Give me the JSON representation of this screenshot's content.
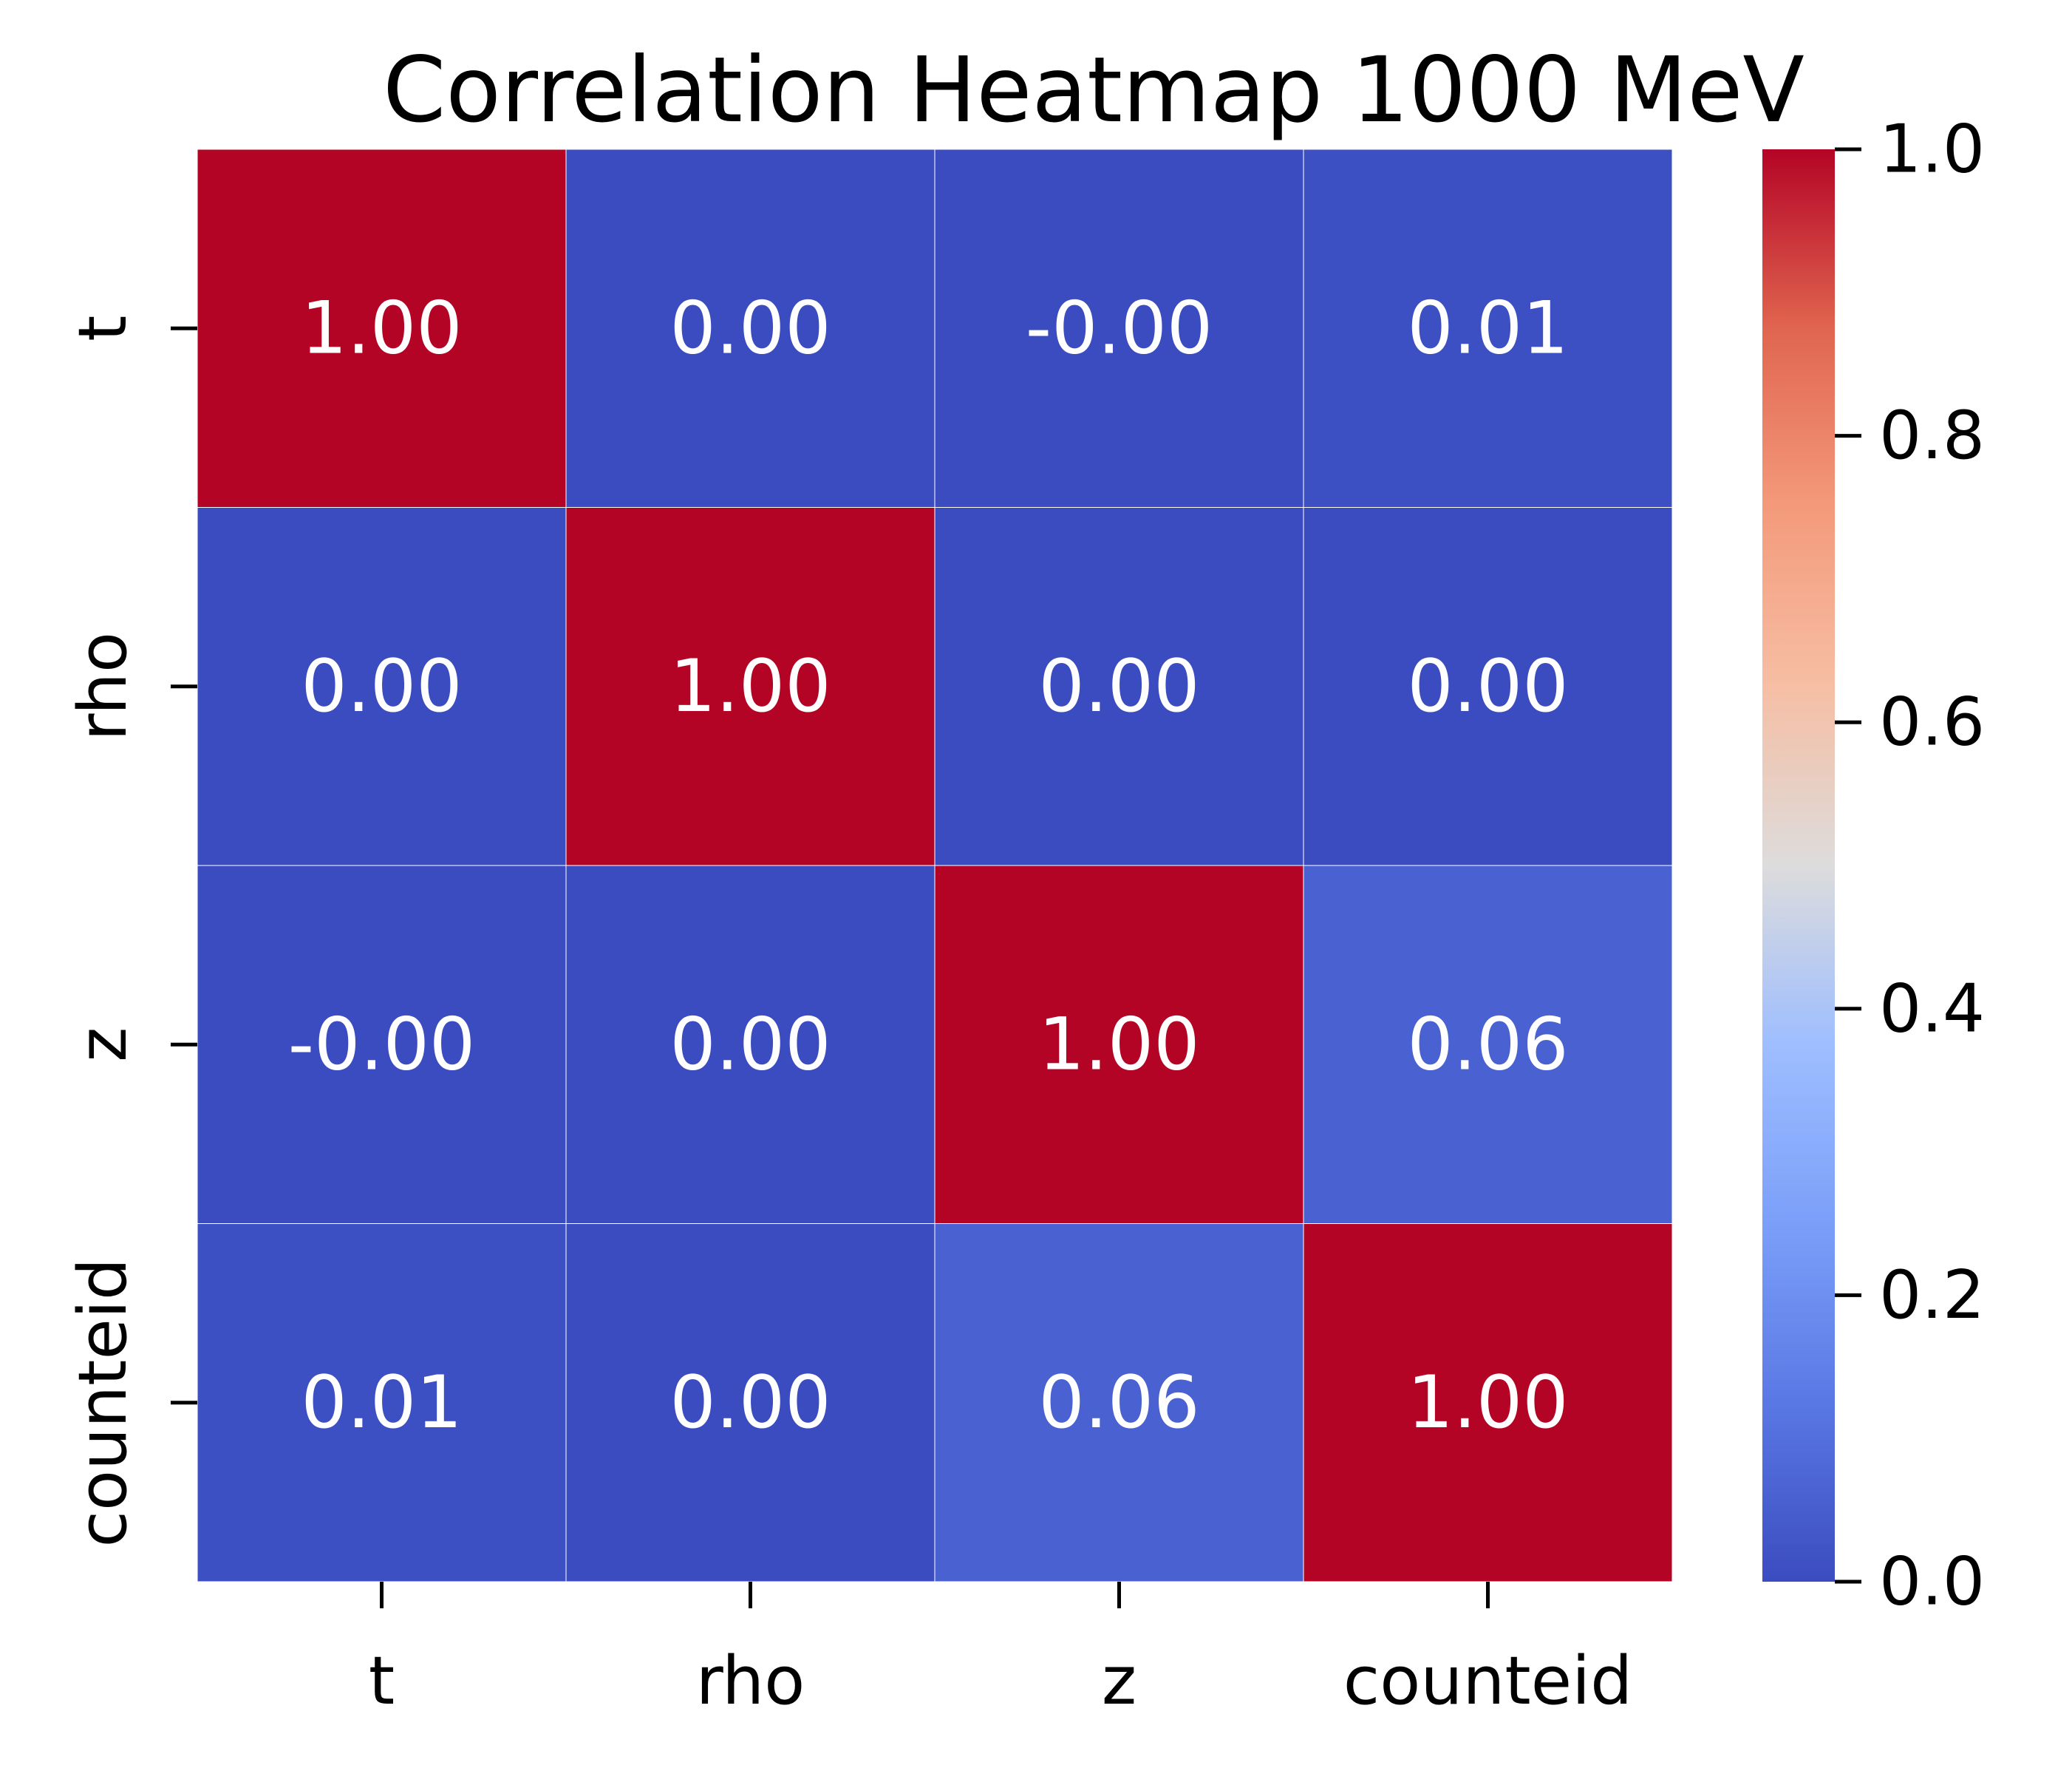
{
  "chart_data": {
    "type": "heatmap",
    "title": "Correlation Heatmap 1000 MeV",
    "xlabel": "",
    "ylabel": "",
    "x_categories": [
      "t",
      "rho",
      "z",
      "counteid"
    ],
    "y_categories": [
      "t",
      "rho",
      "z",
      "counteid"
    ],
    "values": [
      [
        1.0,
        0.0,
        -0.0,
        0.01
      ],
      [
        0.0,
        1.0,
        0.0,
        0.0
      ],
      [
        -0.0,
        0.0,
        1.0,
        0.06
      ],
      [
        0.01,
        0.0,
        0.06,
        1.0
      ]
    ],
    "cell_labels": [
      [
        "1.00",
        "0.00",
        "-0.00",
        "0.01"
      ],
      [
        "0.00",
        "1.00",
        "0.00",
        "0.00"
      ],
      [
        "-0.00",
        "0.00",
        "1.00",
        "0.06"
      ],
      [
        "0.01",
        "0.00",
        "0.06",
        "1.00"
      ]
    ],
    "colormap": "coolwarm",
    "colorbar": {
      "range": [
        0.0,
        1.0
      ],
      "tick_labels": [
        "0.0",
        "0.2",
        "0.4",
        "0.6",
        "0.8",
        "1.0"
      ],
      "tick_values": [
        0.0,
        0.2,
        0.4,
        0.6,
        0.8,
        1.0
      ],
      "placement": "right"
    },
    "annotation_color": "#ffffff",
    "cell_border_color": "#ffffff",
    "grid": false,
    "legend": "none"
  }
}
